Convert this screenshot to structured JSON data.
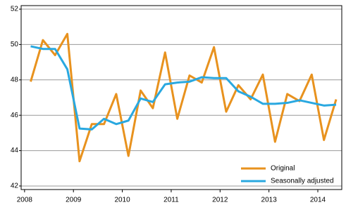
{
  "chart_data": {
    "type": "line",
    "x": [
      2008.125,
      2008.375,
      2008.625,
      2008.875,
      2009.125,
      2009.375,
      2009.625,
      2009.875,
      2010.125,
      2010.375,
      2010.625,
      2010.875,
      2011.125,
      2011.375,
      2011.625,
      2011.875,
      2012.125,
      2012.375,
      2012.625,
      2012.875,
      2013.125,
      2013.375,
      2013.625,
      2013.875,
      2014.125,
      2014.375
    ],
    "series": [
      {
        "name": "Original",
        "color": "#e8921e",
        "values": [
          47.9,
          50.25,
          49.4,
          50.6,
          43.4,
          45.5,
          45.5,
          47.2,
          43.7,
          47.4,
          46.4,
          49.55,
          45.8,
          48.25,
          47.85,
          49.85,
          46.2,
          47.7,
          46.9,
          48.3,
          44.5,
          47.2,
          46.8,
          48.3,
          44.6,
          46.9
        ]
      },
      {
        "name": "Seasonally adjusted",
        "color": "#29a8e0",
        "values": [
          49.9,
          49.75,
          49.75,
          48.6,
          45.25,
          45.2,
          45.8,
          45.5,
          45.7,
          46.95,
          46.75,
          47.75,
          47.85,
          47.9,
          48.15,
          48.1,
          48.1,
          47.35,
          47.05,
          46.65,
          46.65,
          46.7,
          46.85,
          46.7,
          46.55,
          46.6
        ]
      }
    ],
    "xlim": [
      2007.93,
      2014.49
    ],
    "xticks": [
      2008,
      2009,
      2010,
      2011,
      2012,
      2013,
      2014
    ],
    "ylim": [
      41.8,
      52.2
    ],
    "yticks": [
      42,
      44,
      46,
      48,
      50,
      52
    ],
    "grid": true,
    "legend": "lower right"
  }
}
